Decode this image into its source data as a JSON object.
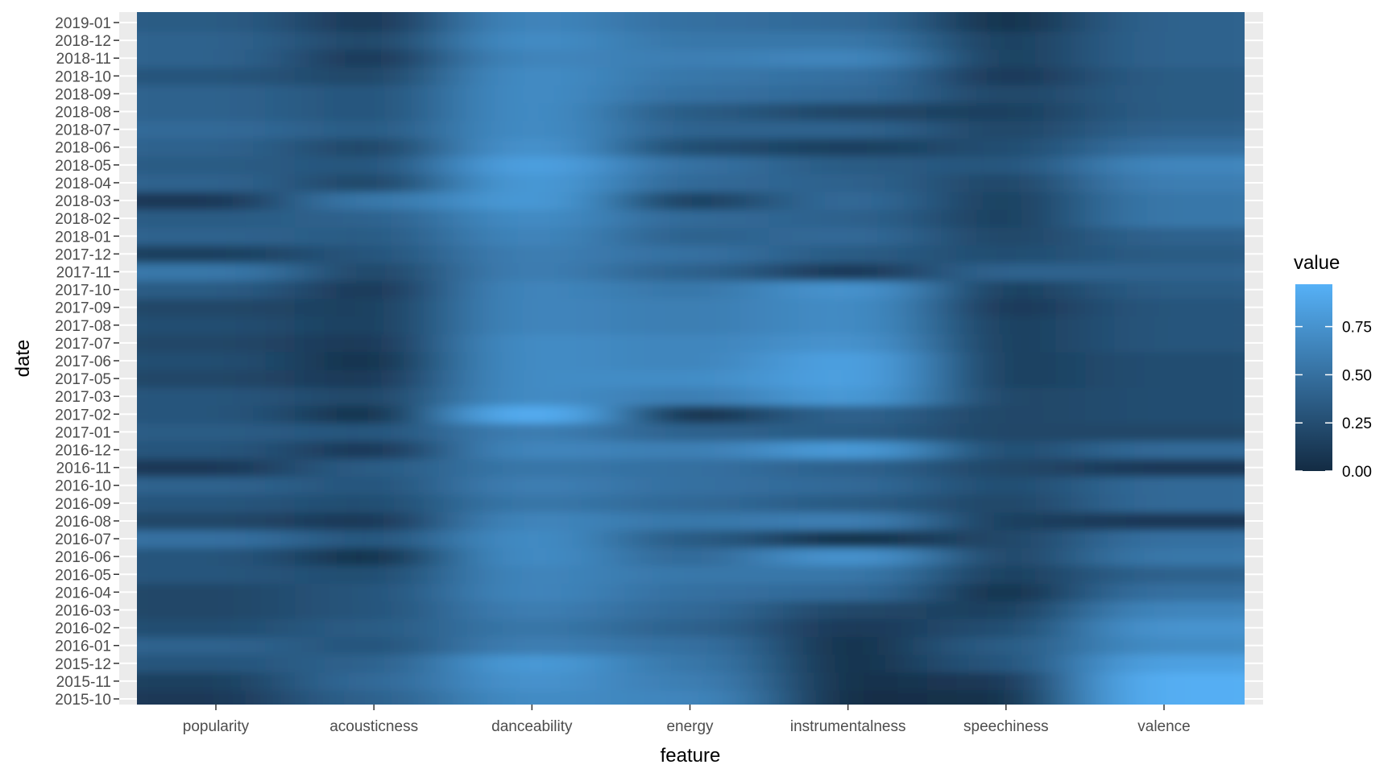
{
  "chart_data": {
    "type": "heatmap",
    "title": "",
    "xlabel": "feature",
    "ylabel": "date",
    "x_categories": [
      "popularity",
      "acousticness",
      "danceability",
      "energy",
      "instrumentalness",
      "speechiness",
      "valence"
    ],
    "y_categories": [
      "2015-10",
      "2015-11",
      "2015-12",
      "2016-01",
      "2016-02",
      "2016-03",
      "2016-04",
      "2016-05",
      "2016-06",
      "2016-07",
      "2016-08",
      "2016-09",
      "2016-10",
      "2016-11",
      "2016-12",
      "2017-01",
      "2017-02",
      "2017-03",
      "2017-05",
      "2017-06",
      "2017-07",
      "2017-08",
      "2017-09",
      "2017-10",
      "2017-11",
      "2017-12",
      "2018-01",
      "2018-02",
      "2018-03",
      "2018-04",
      "2018-05",
      "2018-06",
      "2018-07",
      "2018-08",
      "2018-09",
      "2018-10",
      "2018-11",
      "2018-12",
      "2019-01"
    ],
    "values": [
      [
        0.1,
        0.4,
        0.7,
        0.65,
        0.02,
        0.05,
        0.95
      ],
      [
        0.15,
        0.45,
        0.75,
        0.6,
        0.05,
        0.1,
        0.95
      ],
      [
        0.3,
        0.4,
        0.8,
        0.55,
        0.05,
        0.3,
        0.85
      ],
      [
        0.4,
        0.3,
        0.6,
        0.5,
        0.05,
        0.35,
        0.7
      ],
      [
        0.25,
        0.35,
        0.55,
        0.4,
        0.1,
        0.25,
        0.75
      ],
      [
        0.2,
        0.3,
        0.6,
        0.45,
        0.2,
        0.15,
        0.65
      ],
      [
        0.2,
        0.3,
        0.65,
        0.5,
        0.45,
        0.05,
        0.5
      ],
      [
        0.3,
        0.25,
        0.65,
        0.55,
        0.55,
        0.15,
        0.4
      ],
      [
        0.3,
        0.05,
        0.7,
        0.45,
        0.75,
        0.2,
        0.55
      ],
      [
        0.5,
        0.3,
        0.7,
        0.35,
        0.05,
        0.2,
        0.5
      ],
      [
        0.2,
        0.1,
        0.65,
        0.55,
        0.6,
        0.15,
        0.1
      ],
      [
        0.3,
        0.25,
        0.55,
        0.45,
        0.35,
        0.2,
        0.45
      ],
      [
        0.4,
        0.3,
        0.6,
        0.5,
        0.45,
        0.25,
        0.45
      ],
      [
        0.1,
        0.35,
        0.55,
        0.5,
        0.4,
        0.2,
        0.1
      ],
      [
        0.3,
        0.1,
        0.65,
        0.6,
        0.8,
        0.25,
        0.45
      ],
      [
        0.35,
        0.3,
        0.6,
        0.4,
        0.35,
        0.2,
        0.2
      ],
      [
        0.3,
        0.05,
        0.95,
        0.05,
        0.4,
        0.2,
        0.25
      ],
      [
        0.3,
        0.2,
        0.7,
        0.6,
        0.8,
        0.2,
        0.25
      ],
      [
        0.2,
        0.1,
        0.7,
        0.7,
        0.85,
        0.15,
        0.25
      ],
      [
        0.25,
        0.05,
        0.7,
        0.65,
        0.85,
        0.15,
        0.25
      ],
      [
        0.2,
        0.1,
        0.7,
        0.65,
        0.75,
        0.15,
        0.3
      ],
      [
        0.25,
        0.15,
        0.65,
        0.6,
        0.7,
        0.15,
        0.3
      ],
      [
        0.2,
        0.15,
        0.65,
        0.6,
        0.7,
        0.1,
        0.3
      ],
      [
        0.35,
        0.1,
        0.65,
        0.55,
        0.75,
        0.15,
        0.35
      ],
      [
        0.55,
        0.2,
        0.6,
        0.4,
        0.1,
        0.4,
        0.4
      ],
      [
        0.15,
        0.3,
        0.6,
        0.5,
        0.35,
        0.25,
        0.35
      ],
      [
        0.4,
        0.35,
        0.65,
        0.4,
        0.45,
        0.2,
        0.4
      ],
      [
        0.35,
        0.4,
        0.7,
        0.45,
        0.4,
        0.15,
        0.55
      ],
      [
        0.1,
        0.55,
        0.8,
        0.15,
        0.45,
        0.15,
        0.55
      ],
      [
        0.4,
        0.2,
        0.8,
        0.45,
        0.4,
        0.2,
        0.6
      ],
      [
        0.35,
        0.3,
        0.85,
        0.5,
        0.35,
        0.3,
        0.65
      ],
      [
        0.4,
        0.2,
        0.75,
        0.25,
        0.15,
        0.25,
        0.5
      ],
      [
        0.45,
        0.35,
        0.7,
        0.4,
        0.4,
        0.2,
        0.4
      ],
      [
        0.4,
        0.3,
        0.7,
        0.35,
        0.2,
        0.15,
        0.35
      ],
      [
        0.4,
        0.3,
        0.7,
        0.5,
        0.45,
        0.2,
        0.35
      ],
      [
        0.3,
        0.2,
        0.7,
        0.55,
        0.5,
        0.1,
        0.35
      ],
      [
        0.4,
        0.1,
        0.65,
        0.6,
        0.65,
        0.15,
        0.4
      ],
      [
        0.4,
        0.2,
        0.7,
        0.55,
        0.55,
        0.15,
        0.4
      ],
      [
        0.35,
        0.1,
        0.65,
        0.5,
        0.45,
        0.05,
        0.4
      ]
    ],
    "color_scale": {
      "low": "#132B43",
      "high": "#56B1F7"
    },
    "legend": {
      "title": "value",
      "position": "right",
      "ticks": [
        0.0,
        0.25,
        0.5,
        0.75
      ],
      "tick_labels": [
        "0.00",
        "0.25",
        "0.50",
        "0.75"
      ],
      "range": [
        0,
        0.97
      ]
    },
    "grid": true,
    "background": "#EBEBEB"
  }
}
